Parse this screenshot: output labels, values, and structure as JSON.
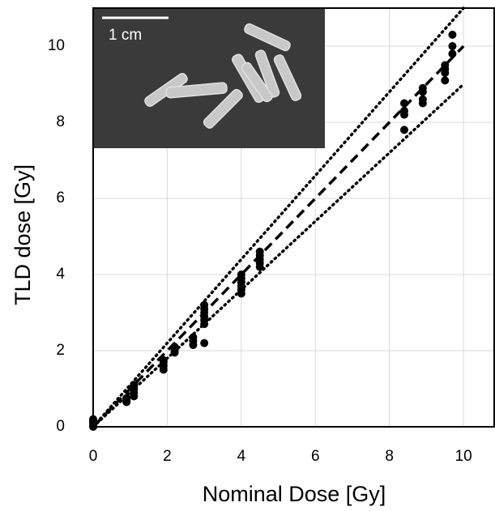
{
  "chart_data": {
    "type": "scatter",
    "x_label": "Nominal Dose [Gy]",
    "y_label": "TLD dose [Gy]",
    "inset_scale_label": "1 cm",
    "xlim": [
      0,
      10.85
    ],
    "ylim": [
      0,
      11
    ],
    "xticks": [
      0,
      2,
      4,
      6,
      8,
      10
    ],
    "yticks": [
      0,
      2,
      4,
      6,
      8,
      10
    ],
    "grid": true,
    "reference_lines": [
      {
        "slope": 1,
        "x_end": 10,
        "style": "dashed"
      },
      {
        "slope": 1.1,
        "x_end": 10,
        "style": "dotted"
      },
      {
        "slope": 0.9,
        "x_end": 10,
        "style": "dotted"
      }
    ],
    "series": [
      {
        "color": "#000000",
        "x": [
          0,
          0,
          0,
          0,
          0,
          0.9,
          0.9,
          0.9,
          1.1,
          1.1,
          1.1,
          1.1,
          1.9,
          1.9,
          1.9,
          1.9,
          2.2,
          2.2,
          2.2,
          2.2,
          2.7,
          2.7,
          2.7,
          3,
          3,
          3,
          3,
          3,
          3,
          3,
          4,
          4,
          4,
          4,
          4,
          4,
          4.5,
          4.5,
          4.5,
          4.5,
          4.5,
          8.4,
          8.4,
          8.4,
          8.4,
          8.9,
          8.9,
          8.9,
          8.9,
          9.5,
          9.5,
          9.5,
          9.5,
          9.7,
          9.7,
          9.7
        ],
        "y": [
          0,
          0.05,
          0.1,
          0.15,
          0.2,
          0.65,
          0.7,
          0.75,
          0.8,
          0.9,
          1.0,
          1.1,
          1.5,
          1.6,
          1.7,
          1.75,
          1.95,
          2.0,
          2.05,
          2.1,
          2.15,
          2.25,
          2.35,
          2.2,
          2.7,
          2.8,
          2.9,
          3.0,
          3.1,
          3.2,
          3.5,
          3.6,
          3.7,
          3.8,
          3.9,
          4.0,
          4.2,
          4.3,
          4.4,
          4.5,
          4.6,
          7.8,
          8.2,
          8.3,
          8.5,
          8.5,
          8.6,
          8.8,
          8.9,
          9.1,
          9.3,
          9.4,
          9.5,
          9.8,
          10.0,
          10.3
        ]
      }
    ]
  }
}
